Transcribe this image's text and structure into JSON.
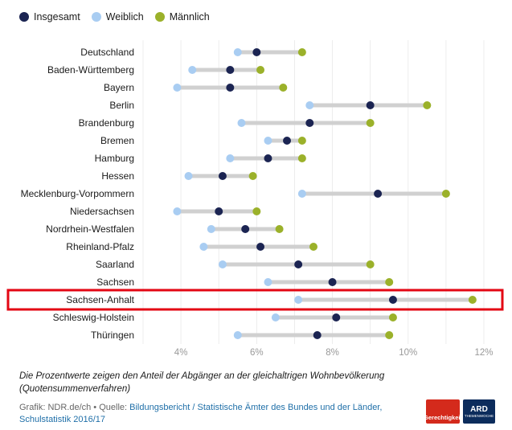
{
  "legend": [
    {
      "label": "Insgesamt",
      "color": "#1b2452"
    },
    {
      "label": "Weiblich",
      "color": "#a9cdf2"
    },
    {
      "label": "Männlich",
      "color": "#9bb12a"
    }
  ],
  "chart_data": {
    "type": "dumbbell",
    "xlim": [
      3,
      12
    ],
    "x_ticks": [
      4,
      6,
      8,
      10,
      12
    ],
    "x_tick_labels": [
      "4%",
      "6%",
      "8%",
      "10%",
      "12%"
    ],
    "grid": true,
    "highlight": "Sachsen-Anhalt",
    "highlight_color": "#e30613",
    "categories": [
      "Deutschland",
      "Baden-Württemberg",
      "Bayern",
      "Berlin",
      "Brandenburg",
      "Bremen",
      "Hamburg",
      "Hessen",
      "Mecklenburg-Vorpommern",
      "Niedersachsen",
      "Nordrhein-Westfalen",
      "Rheinland-Pfalz",
      "Saarland",
      "Sachsen",
      "Sachsen-Anhalt",
      "Schleswig-Holstein",
      "Thüringen"
    ],
    "series": [
      {
        "name": "Weiblich",
        "color": "#a9cdf2",
        "values": [
          5.5,
          4.3,
          3.9,
          7.4,
          5.6,
          6.3,
          5.3,
          4.2,
          7.2,
          3.9,
          4.8,
          4.6,
          5.1,
          6.3,
          7.1,
          6.5,
          5.5
        ]
      },
      {
        "name": "Insgesamt",
        "color": "#1b2452",
        "values": [
          6.0,
          5.3,
          5.3,
          9.0,
          7.4,
          6.8,
          6.3,
          5.1,
          9.2,
          5.0,
          5.7,
          6.1,
          7.1,
          8.0,
          9.6,
          8.1,
          7.6
        ]
      },
      {
        "name": "Männlich",
        "color": "#9bb12a",
        "values": [
          7.2,
          6.1,
          6.7,
          10.5,
          9.0,
          7.2,
          7.2,
          5.9,
          11.0,
          6.0,
          6.6,
          7.5,
          9.0,
          9.5,
          11.7,
          9.6,
          9.5
        ]
      }
    ]
  },
  "note": "Die Prozentwerte zeigen den Anteil der Abgänger an der gleichaltrigen Wohnbevölkerung (Quotensummenverfahren)",
  "source": {
    "prefix": "Grafik: NDR.de/ch • Quelle: ",
    "link": "Bildungsbericht / Statistische Ämter des Bundes und der Länder, Schulstatistik 2016/17"
  },
  "logos": {
    "gerechtigkeit": "Gerechtigkeit",
    "ard_big": "ARD",
    "ard_small": "THEMENWOCHE"
  }
}
